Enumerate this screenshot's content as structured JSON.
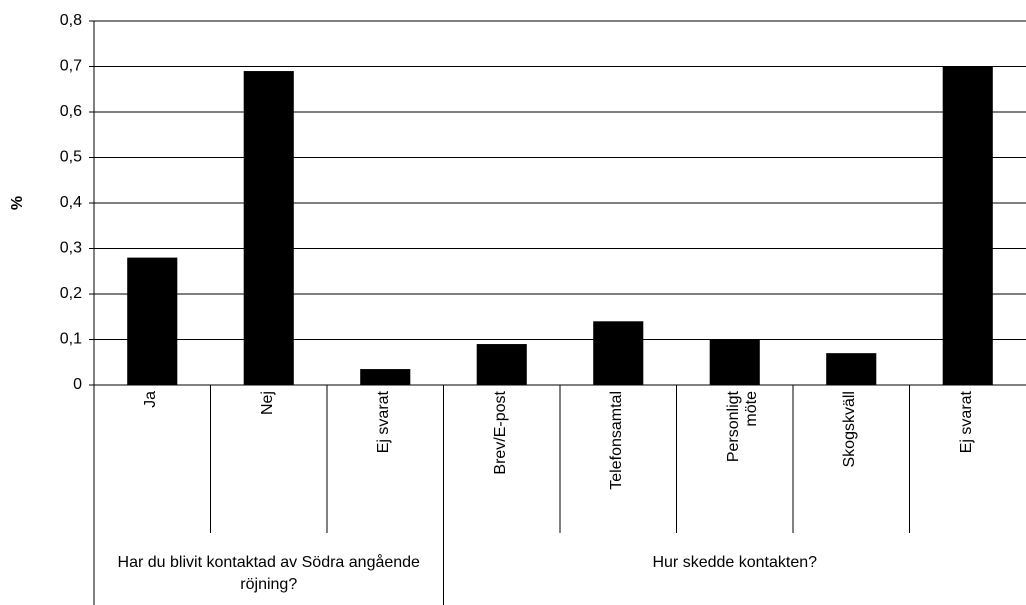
{
  "chart_data": {
    "type": "bar",
    "y_label": "%",
    "categories": [
      "Ja",
      "Nej",
      "Ej svarat",
      "Brev/E-post",
      "Telefonsamtal",
      "Personligt möte",
      "Skogskväll",
      "Ej svarat"
    ],
    "values": [
      0.28,
      0.69,
      0.035,
      0.09,
      0.14,
      0.1,
      0.07,
      0.7
    ],
    "groups": [
      {
        "label": "Har du blivit kontaktad av Södra angående röjning?",
        "count": 3
      },
      {
        "label": "Hur skedde kontakten?",
        "count": 5
      }
    ],
    "color": "#000000",
    "ylim": [
      0,
      0.8
    ],
    "yticks": [
      0,
      {
        "value": 0.1,
        "label": "0,1"
      },
      {
        "value": 0.2,
        "label": "0,2"
      },
      {
        "value": 0.3,
        "label": "0,3"
      },
      {
        "value": 0.4,
        "label": "0,4"
      },
      {
        "value": 0.5,
        "label": "0,5"
      },
      {
        "value": 0.6,
        "label": "0,6"
      },
      {
        "value": 0.7,
        "label": "0,7"
      },
      {
        "value": 0.8,
        "label": "0,8"
      }
    ],
    "grid": true
  }
}
